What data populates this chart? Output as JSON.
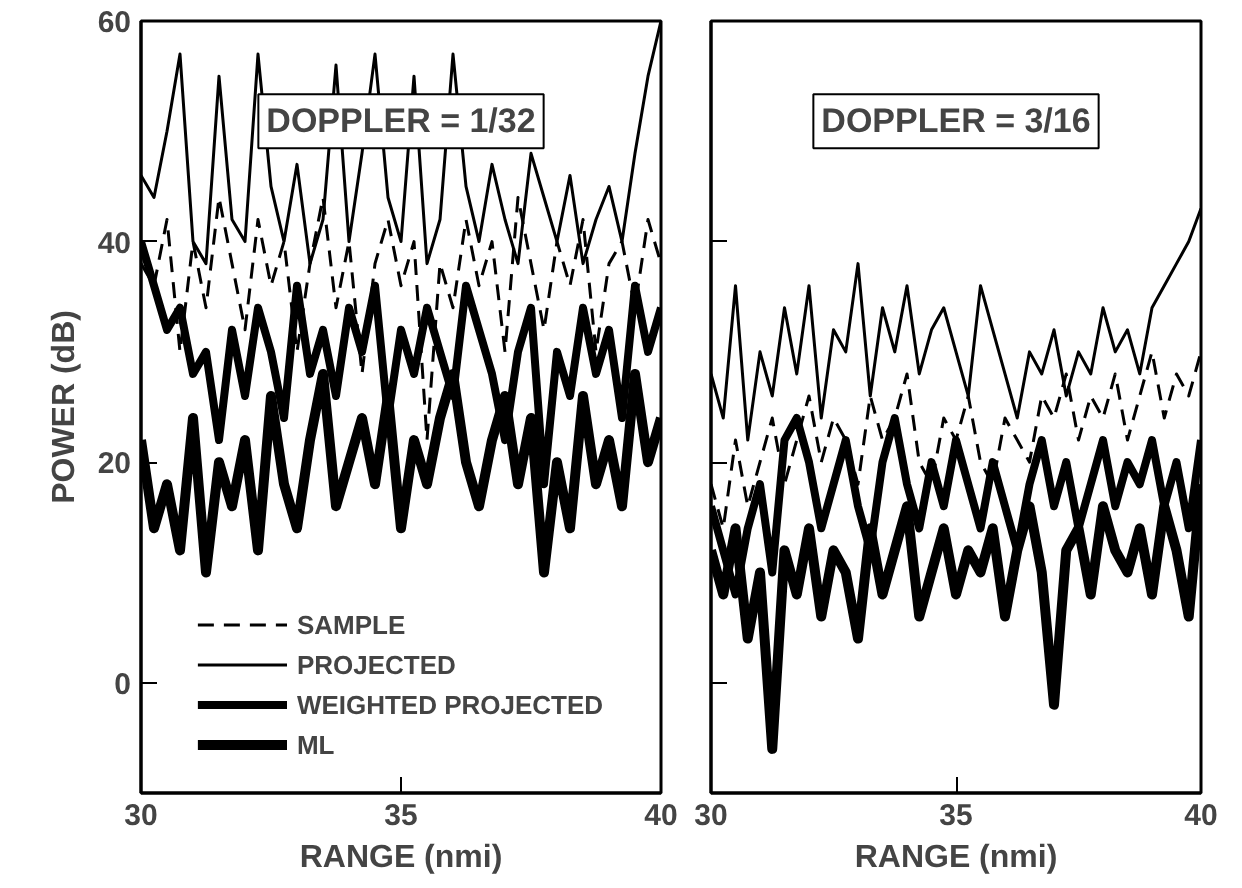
{
  "chart_data": [
    {
      "type": "line",
      "annotations": [
        "DOPPLER = 1/32"
      ],
      "xlabel": "RANGE (nmi)",
      "ylabel": "POWER (dB)",
      "xlim": [
        30,
        40
      ],
      "xticks": [
        30,
        35,
        40
      ],
      "ylim": [
        -10,
        60
      ],
      "yticks": [
        0,
        20,
        40,
        60
      ],
      "grid": false,
      "legend": "bottom",
      "x": [
        30,
        30.25,
        30.5,
        30.75,
        31,
        31.25,
        31.5,
        31.75,
        32,
        32.25,
        32.5,
        32.75,
        33,
        33.25,
        33.5,
        33.75,
        34,
        34.25,
        34.5,
        34.75,
        35,
        35.25,
        35.5,
        35.75,
        36,
        36.25,
        36.5,
        36.75,
        37,
        37.25,
        37.5,
        37.75,
        38,
        38.25,
        38.5,
        38.75,
        39,
        39.25,
        39.5,
        39.75,
        40
      ],
      "series": [
        {
          "name": "SAMPLE",
          "color": "#000000",
          "line_style": "dashed",
          "values": [
            38,
            36,
            42,
            30,
            40,
            34,
            44,
            38,
            32,
            42,
            36,
            40,
            30,
            38,
            44,
            34,
            40,
            28,
            38,
            42,
            36,
            40,
            22,
            38,
            34,
            42,
            36,
            40,
            30,
            44,
            38,
            32,
            40,
            36,
            42,
            30,
            38,
            40,
            34,
            42,
            38
          ]
        },
        {
          "name": "PROJECTED",
          "color": "#000000",
          "values": [
            46,
            44,
            50,
            57,
            40,
            38,
            55,
            42,
            40,
            57,
            45,
            40,
            47,
            38,
            42,
            56,
            40,
            48,
            57,
            44,
            40,
            55,
            38,
            42,
            57,
            45,
            40,
            47,
            42,
            38,
            48,
            44,
            40,
            46,
            38,
            42,
            45,
            40,
            48,
            55,
            60
          ]
        },
        {
          "name": "WEIGHTED PROJECTED",
          "color": "#000000",
          "values": [
            40,
            36,
            32,
            34,
            28,
            30,
            22,
            32,
            26,
            34,
            30,
            24,
            36,
            28,
            32,
            26,
            34,
            30,
            36,
            24,
            32,
            28,
            34,
            30,
            26,
            36,
            32,
            28,
            22,
            30,
            34,
            18,
            30,
            26,
            34,
            28,
            32,
            24,
            36,
            30,
            34
          ]
        },
        {
          "name": "ML",
          "color": "#000000",
          "values": [
            22,
            14,
            18,
            12,
            24,
            10,
            20,
            16,
            22,
            12,
            26,
            18,
            14,
            22,
            28,
            16,
            20,
            24,
            18,
            26,
            14,
            22,
            18,
            24,
            28,
            20,
            16,
            22,
            26,
            18,
            24,
            10,
            20,
            14,
            26,
            18,
            22,
            16,
            28,
            20,
            24
          ]
        }
      ]
    },
    {
      "type": "line",
      "annotations": [
        "DOPPLER = 3/16"
      ],
      "xlabel": "RANGE (nmi)",
      "xlim": [
        30,
        40
      ],
      "xticks": [
        30,
        35,
        40
      ],
      "ylim": [
        -10,
        60
      ],
      "yticks": [
        0,
        20,
        40,
        60
      ],
      "grid": false,
      "tick_labels": "x",
      "x": [
        30,
        30.25,
        30.5,
        30.75,
        31,
        31.25,
        31.5,
        31.75,
        32,
        32.25,
        32.5,
        32.75,
        33,
        33.25,
        33.5,
        33.75,
        34,
        34.25,
        34.5,
        34.75,
        35,
        35.25,
        35.5,
        35.75,
        36,
        36.25,
        36.5,
        36.75,
        37,
        37.25,
        37.5,
        37.75,
        38,
        38.25,
        38.5,
        38.75,
        39,
        39.25,
        39.5,
        39.75,
        40
      ],
      "series": [
        {
          "color": "#000000",
          "line_style": "dashed",
          "values": [
            18,
            14,
            22,
            16,
            20,
            24,
            18,
            22,
            26,
            20,
            24,
            22,
            18,
            26,
            22,
            24,
            28,
            20,
            18,
            24,
            22,
            26,
            20,
            18,
            24,
            22,
            20,
            26,
            24,
            28,
            22,
            26,
            24,
            28,
            22,
            26,
            30,
            24,
            28,
            26,
            30
          ]
        },
        {
          "color": "#000000",
          "values": [
            28,
            24,
            36,
            22,
            30,
            26,
            34,
            28,
            36,
            24,
            32,
            30,
            38,
            26,
            34,
            30,
            36,
            28,
            32,
            34,
            30,
            26,
            36,
            32,
            28,
            24,
            30,
            28,
            32,
            26,
            30,
            28,
            34,
            30,
            32,
            28,
            34,
            36,
            38,
            40,
            43
          ]
        },
        {
          "color": "#000000",
          "values": [
            16,
            12,
            8,
            14,
            18,
            10,
            22,
            24,
            20,
            14,
            18,
            22,
            16,
            12,
            20,
            24,
            18,
            14,
            20,
            16,
            22,
            18,
            14,
            20,
            16,
            12,
            18,
            22,
            16,
            20,
            14,
            18,
            22,
            16,
            20,
            18,
            22,
            16,
            20,
            14,
            22
          ]
        },
        {
          "color": "#000000",
          "values": [
            12,
            8,
            14,
            4,
            10,
            -6,
            12,
            8,
            14,
            6,
            12,
            10,
            4,
            14,
            8,
            12,
            16,
            6,
            10,
            14,
            8,
            12,
            10,
            14,
            6,
            12,
            16,
            10,
            -2,
            12,
            14,
            8,
            16,
            12,
            10,
            14,
            8,
            16,
            12,
            6,
            18
          ]
        }
      ]
    }
  ]
}
